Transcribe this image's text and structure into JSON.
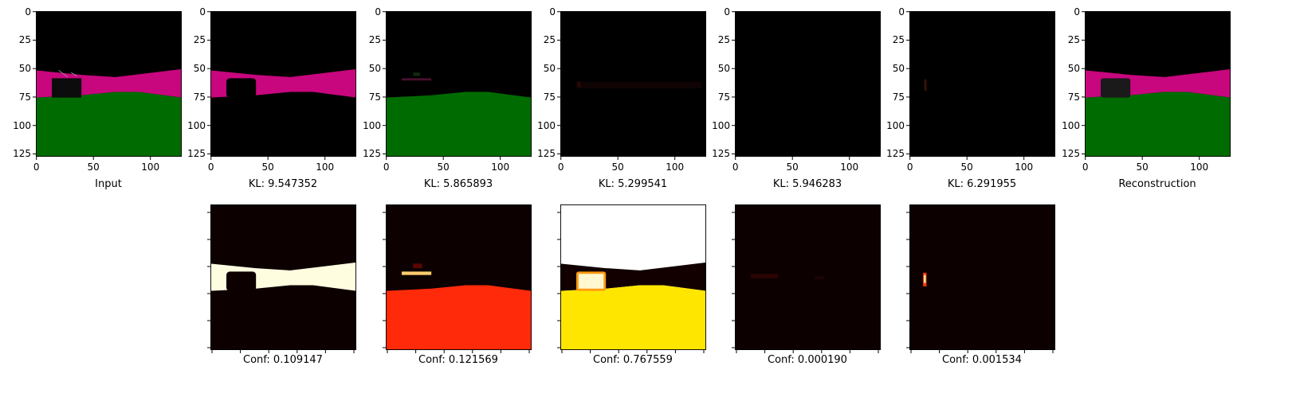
{
  "colors": {
    "black": "#000000",
    "magenta": "#c8067e",
    "green": "#006b00",
    "dark_red": "#1a0000"
  },
  "top_row": {
    "y_ticks": [
      "0",
      "25",
      "50",
      "75",
      "100",
      "125"
    ],
    "x_ticks": [
      "0",
      "50",
      "100"
    ],
    "panels": [
      {
        "caption": "Input"
      },
      {
        "caption": "KL: 9.547352"
      },
      {
        "caption": "KL: 5.865893"
      },
      {
        "caption": "KL: 5.299541"
      },
      {
        "caption": "KL: 5.946283"
      },
      {
        "caption": "KL: 6.291955"
      },
      {
        "caption": "Reconstruction"
      }
    ]
  },
  "bottom_row": {
    "panels": [
      {
        "caption": "Conf: 0.109147"
      },
      {
        "caption": "Conf: 0.121569"
      },
      {
        "caption": "Conf: 0.767559"
      },
      {
        "caption": "Conf: 0.000190"
      },
      {
        "caption": "Conf: 0.001534"
      }
    ]
  }
}
